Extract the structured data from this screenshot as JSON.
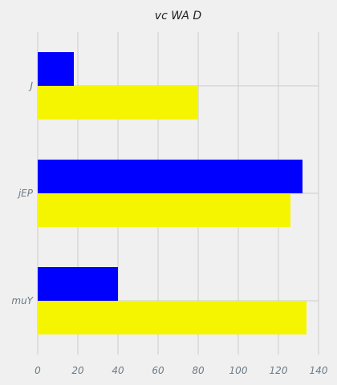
{
  "chart_data": {
    "type": "bar",
    "orientation": "horizontal",
    "title": "vc WA D",
    "xlabel": "",
    "ylabel": "",
    "categories": [
      "J",
      "jEP",
      "muY"
    ],
    "series": [
      {
        "color": "#0000ff",
        "values": [
          18,
          132,
          40
        ]
      },
      {
        "color": "#f5f500",
        "values": [
          80,
          126,
          134
        ]
      }
    ],
    "xlim": [
      0,
      140
    ],
    "xticks": [
      0,
      20,
      40,
      60,
      80,
      100,
      120,
      140
    ],
    "grid": true,
    "legend": "none",
    "background": "#f0f0f0",
    "gridColor": "#cbcbcb",
    "tickColor": "#6b7b86"
  }
}
